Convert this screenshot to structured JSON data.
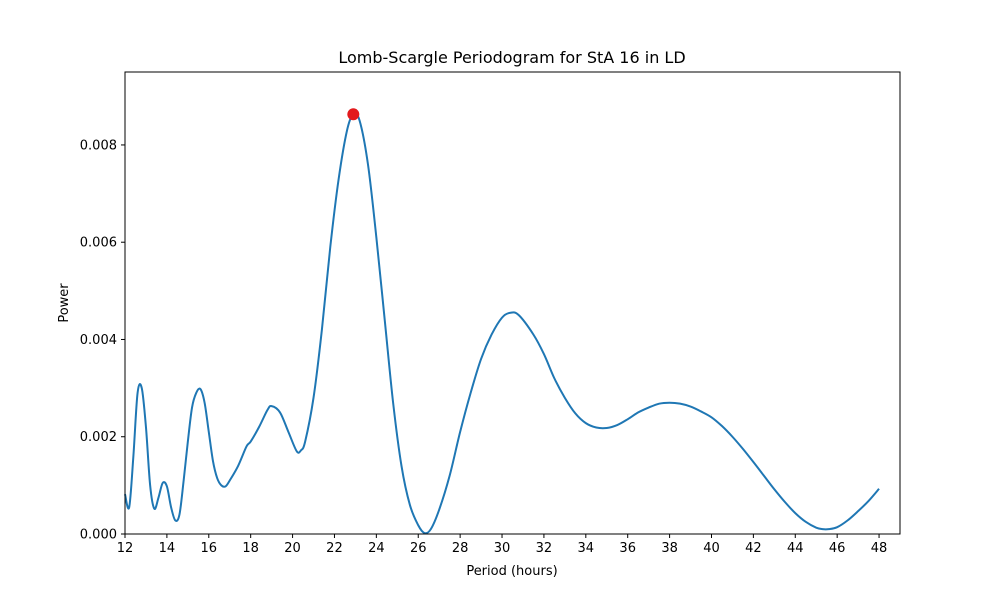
{
  "chart_data": {
    "type": "line",
    "title": "Lomb-Scargle Periodogram for StA 16 in LD",
    "xlabel": "Period (hours)",
    "ylabel": "Power",
    "xlim": [
      12,
      49
    ],
    "ylim": [
      0,
      0.0095
    ],
    "xticks": [
      12,
      14,
      16,
      18,
      20,
      22,
      24,
      26,
      28,
      30,
      32,
      34,
      36,
      38,
      40,
      42,
      44,
      46,
      48
    ],
    "xtick_labels": [
      "12",
      "14",
      "16",
      "18",
      "20",
      "22",
      "24",
      "26",
      "28",
      "30",
      "32",
      "34",
      "36",
      "38",
      "40",
      "42",
      "44",
      "46",
      "48"
    ],
    "yticks": [
      0,
      0.002,
      0.004,
      0.006,
      0.008
    ],
    "ytick_labels": [
      "0.000",
      "0.002",
      "0.004",
      "0.006",
      "0.008"
    ],
    "grid": false,
    "series": [
      {
        "color": "#1f77b4",
        "x": [
          12.0,
          12.2,
          12.4,
          12.6,
          12.8,
          13.0,
          13.2,
          13.4,
          13.6,
          13.8,
          14.0,
          14.2,
          14.4,
          14.6,
          14.8,
          15.0,
          15.2,
          15.4,
          15.6,
          15.8,
          16.0,
          16.2,
          16.4,
          16.6,
          16.8,
          17.0,
          17.4,
          17.8,
          18.0,
          18.4,
          18.8,
          19.0,
          19.4,
          19.8,
          20.2,
          20.4,
          20.6,
          21.0,
          21.4,
          21.8,
          22.2,
          22.6,
          22.9,
          23.2,
          23.6,
          24.0,
          24.4,
          24.8,
          25.2,
          25.6,
          26.0,
          26.3,
          26.6,
          27.0,
          27.5,
          28.0,
          28.5,
          29.0,
          29.5,
          30.0,
          30.4,
          30.8,
          31.5,
          32.0,
          32.5,
          33.0,
          33.5,
          34.0,
          34.5,
          35.0,
          35.5,
          36.0,
          36.5,
          37.0,
          37.5,
          38.0,
          38.5,
          39.0,
          39.5,
          40.0,
          40.5,
          41.0,
          41.5,
          42.0,
          42.5,
          43.0,
          43.5,
          44.0,
          44.5,
          45.0,
          45.3,
          45.6,
          46.0,
          46.5,
          47.0,
          47.5,
          48.0
        ],
        "y": [
          0.00082,
          0.00055,
          0.0016,
          0.0029,
          0.003,
          0.0022,
          0.001,
          0.00052,
          0.00075,
          0.00105,
          0.00098,
          0.00055,
          0.00028,
          0.0004,
          0.0011,
          0.0019,
          0.0026,
          0.0029,
          0.00298,
          0.0027,
          0.0021,
          0.0015,
          0.00115,
          0.001,
          0.00098,
          0.0011,
          0.0014,
          0.0018,
          0.0019,
          0.0022,
          0.00255,
          0.00263,
          0.0025,
          0.0021,
          0.0017,
          0.00172,
          0.0019,
          0.0028,
          0.0042,
          0.0059,
          0.0073,
          0.0083,
          0.00863,
          0.0085,
          0.0076,
          0.0061,
          0.0044,
          0.0027,
          0.0014,
          0.0006,
          0.00018,
          2e-05,
          0.0001,
          0.0005,
          0.0012,
          0.0021,
          0.0029,
          0.0036,
          0.0041,
          0.00445,
          0.00455,
          0.0045,
          0.0041,
          0.0037,
          0.0032,
          0.0028,
          0.00248,
          0.00228,
          0.00219,
          0.00218,
          0.00224,
          0.00236,
          0.0025,
          0.0026,
          0.00268,
          0.0027,
          0.00268,
          0.00262,
          0.00252,
          0.0024,
          0.00222,
          0.002,
          0.00175,
          0.00148,
          0.0012,
          0.00092,
          0.00066,
          0.00043,
          0.00025,
          0.00013,
          0.0001,
          0.0001,
          0.00014,
          0.00028,
          0.00047,
          0.00068,
          0.00093
        ]
      }
    ],
    "highlight": {
      "x": 22.9,
      "y": 0.00863,
      "color": "#e31a1c"
    }
  }
}
